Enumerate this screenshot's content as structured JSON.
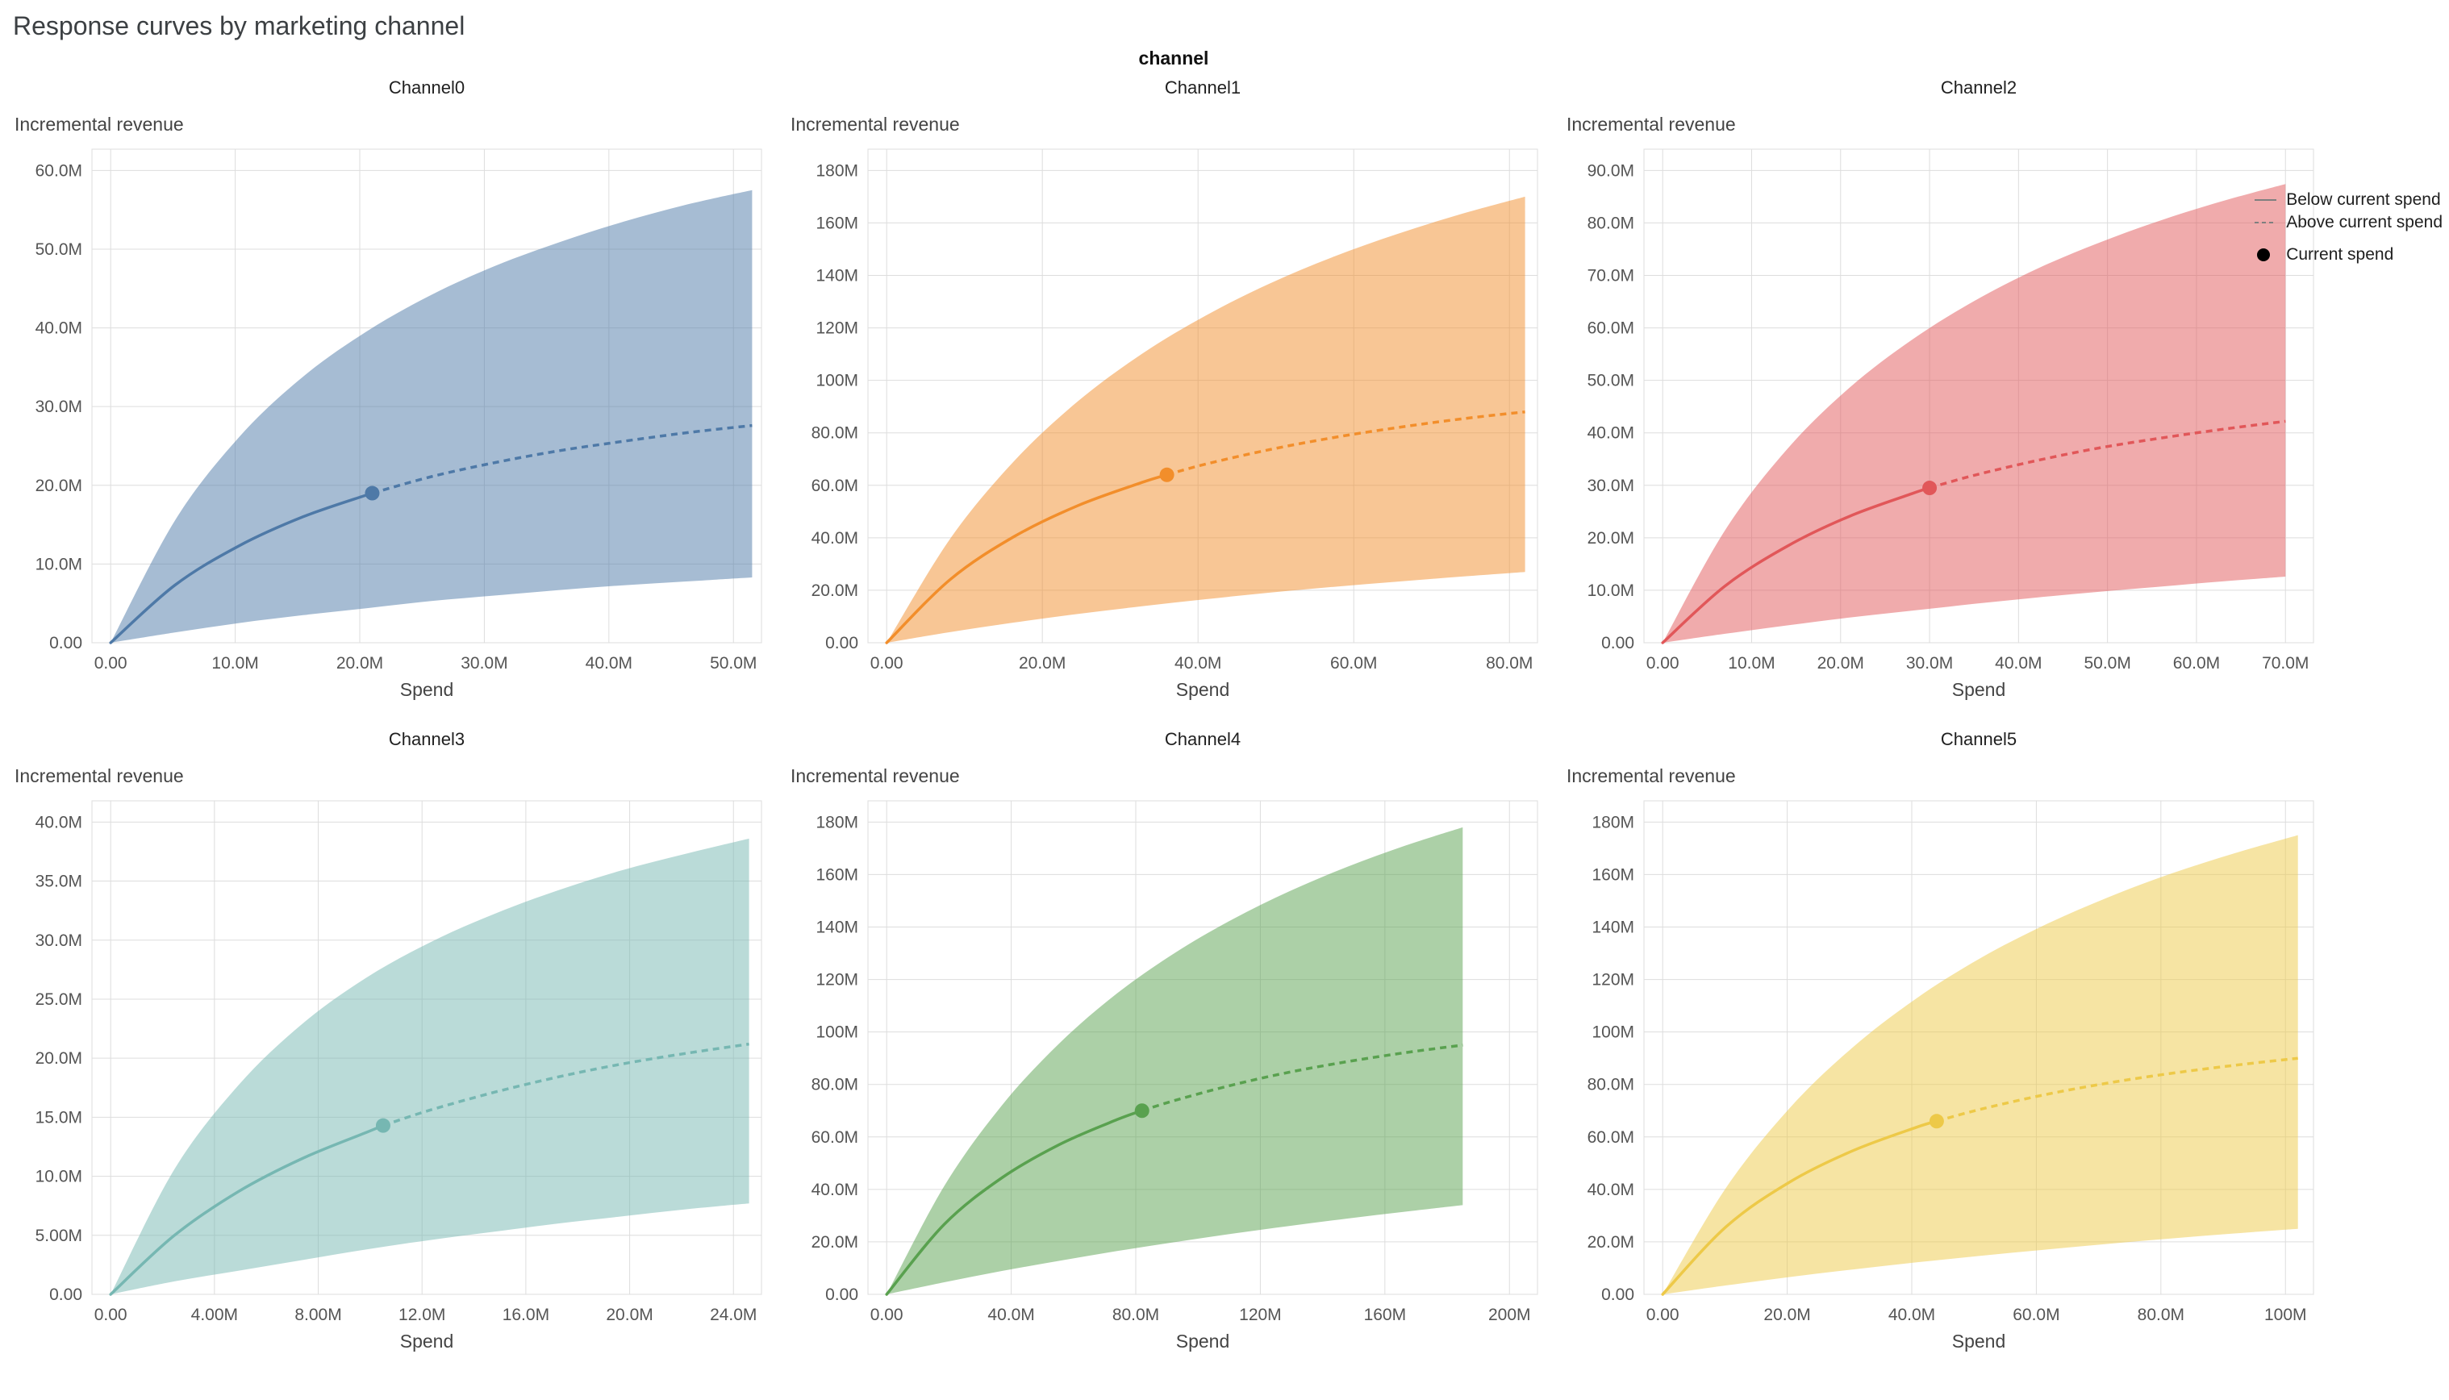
{
  "page": {
    "title": "Response curves by marketing channel",
    "facet_label": "channel"
  },
  "legend": {
    "items": [
      {
        "label": "Below current spend",
        "swatch": "solid-line"
      },
      {
        "label": "Above current spend",
        "swatch": "dashed-line"
      },
      {
        "label": "Current spend",
        "swatch": "dot"
      }
    ],
    "swatch_color": "#7f7f7f",
    "dot_color": "#000000"
  },
  "axes": {
    "y_title": "Incremental revenue",
    "x_title": "Spend",
    "units": "millions"
  },
  "chart_data": [
    {
      "type": "area",
      "title": "Channel0",
      "color": "#4e79a7",
      "x_tick_values": [
        0,
        10,
        20,
        30,
        40,
        50
      ],
      "x_tick_labels": [
        "0.00",
        "10.0M",
        "20.0M",
        "30.0M",
        "40.0M",
        "50.0M"
      ],
      "y_tick_values": [
        0,
        10,
        20,
        30,
        40,
        50,
        60
      ],
      "y_tick_labels": [
        "0.00",
        "10.0M",
        "20.0M",
        "30.0M",
        "40.0M",
        "50.0M",
        "60.0M"
      ],
      "x": [
        0,
        5.15,
        10.3,
        15.45,
        20.6,
        25.75,
        30.9,
        36.05,
        41.2,
        46.35,
        51.5
      ],
      "mean": [
        0,
        7.3,
        12.3,
        16.0,
        18.8,
        21.1,
        22.9,
        24.4,
        25.6,
        26.7,
        27.6
      ],
      "upper": [
        0,
        15.5,
        26.1,
        33.8,
        39.6,
        44.2,
        47.9,
        50.9,
        53.5,
        55.7,
        57.5
      ],
      "lower": [
        0,
        1.3,
        2.5,
        3.5,
        4.4,
        5.3,
        6.0,
        6.7,
        7.3,
        7.8,
        8.3
      ],
      "current_spend": {
        "x": 21,
        "y": 19.0
      }
    },
    {
      "type": "area",
      "title": "Channel1",
      "color": "#f28e2b",
      "x_tick_values": [
        0,
        20,
        40,
        60,
        80
      ],
      "x_tick_labels": [
        "0.00",
        "20.0M",
        "40.0M",
        "60.0M",
        "80.0M"
      ],
      "y_tick_values": [
        0,
        20,
        40,
        60,
        80,
        100,
        120,
        140,
        160,
        180
      ],
      "y_tick_labels": [
        "0.00",
        "20.0M",
        "40.0M",
        "60.0M",
        "80.0M",
        "100M",
        "120M",
        "140M",
        "160M",
        "180M"
      ],
      "x": [
        0,
        8.2,
        16.4,
        24.6,
        32.8,
        41,
        49.2,
        57.4,
        65.6,
        73.8,
        82
      ],
      "mean": [
        0,
        24.2,
        40.5,
        52.3,
        61.1,
        68.1,
        73.6,
        78.2,
        82.0,
        85.3,
        88.0
      ],
      "upper": [
        0,
        39.8,
        69.3,
        92.1,
        110.1,
        124.7,
        136.9,
        147.1,
        155.8,
        163.4,
        170.0
      ],
      "lower": [
        0,
        4.1,
        7.7,
        11.0,
        13.9,
        16.6,
        19.1,
        21.3,
        23.3,
        25.2,
        27.0
      ],
      "current_spend": {
        "x": 36,
        "y": 64.0
      }
    },
    {
      "type": "area",
      "title": "Channel2",
      "color": "#e15759",
      "x_tick_values": [
        0,
        10,
        20,
        30,
        40,
        50,
        60,
        70
      ],
      "x_tick_labels": [
        "0.00",
        "10.0M",
        "20.0M",
        "30.0M",
        "40.0M",
        "50.0M",
        "60.0M",
        "70.0M"
      ],
      "y_tick_values": [
        0,
        10,
        20,
        30,
        40,
        50,
        60,
        70,
        80,
        90
      ],
      "y_tick_labels": [
        "0.00",
        "10.0M",
        "20.0M",
        "30.0M",
        "40.0M",
        "50.0M",
        "60.0M",
        "70.0M",
        "80.0M",
        "90.0M"
      ],
      "x": [
        0,
        7,
        14,
        21,
        28,
        35,
        42,
        49,
        56,
        63,
        70
      ],
      "mean": [
        0,
        10.8,
        18.4,
        24.1,
        28.4,
        31.9,
        34.7,
        37.1,
        39.0,
        40.7,
        42.2
      ],
      "upper": [
        0,
        21.4,
        36.9,
        48.6,
        57.7,
        65.1,
        71.2,
        76.2,
        80.5,
        84.2,
        87.4
      ],
      "lower": [
        0,
        1.7,
        3.3,
        4.8,
        6.1,
        7.4,
        8.6,
        9.7,
        10.7,
        11.7,
        12.6
      ],
      "current_spend": {
        "x": 30,
        "y": 29.5
      }
    },
    {
      "type": "area",
      "title": "Channel3",
      "color": "#76b7b2",
      "x_tick_values": [
        0,
        4,
        8,
        12,
        16,
        20,
        24
      ],
      "x_tick_labels": [
        "0.00",
        "4.00M",
        "8.00M",
        "12.0M",
        "16.0M",
        "20.0M",
        "24.0M"
      ],
      "y_tick_values": [
        0,
        5,
        10,
        15,
        20,
        25,
        30,
        35,
        40
      ],
      "y_tick_labels": [
        "0.00",
        "5.00M",
        "10.0M",
        "15.0M",
        "20.0M",
        "25.0M",
        "30.0M",
        "35.0M",
        "40.0M"
      ],
      "x": [
        0,
        2.46,
        4.92,
        7.38,
        9.84,
        12.3,
        14.76,
        17.22,
        19.68,
        22.14,
        24.6
      ],
      "mean": [
        0,
        5.0,
        8.7,
        11.5,
        13.7,
        15.6,
        17.1,
        18.4,
        19.5,
        20.4,
        21.2
      ],
      "upper": [
        0,
        10.6,
        17.7,
        22.9,
        26.8,
        29.8,
        32.2,
        34.2,
        35.9,
        37.3,
        38.6
      ],
      "lower": [
        0,
        1.1,
        2.0,
        2.9,
        3.8,
        4.6,
        5.3,
        6.0,
        6.6,
        7.2,
        7.7
      ],
      "current_spend": {
        "x": 10.5,
        "y": 14.3
      }
    },
    {
      "type": "area",
      "title": "Channel4",
      "color": "#59a14f",
      "x_tick_values": [
        0,
        40,
        80,
        120,
        160,
        200
      ],
      "x_tick_labels": [
        "0.00",
        "40.0M",
        "80.0M",
        "120M",
        "160M",
        "200M"
      ],
      "y_tick_values": [
        0,
        20,
        40,
        60,
        80,
        100,
        120,
        140,
        160,
        180
      ],
      "y_tick_labels": [
        "0.00",
        "20.0M",
        "40.0M",
        "60.0M",
        "80.0M",
        "100M",
        "120M",
        "140M",
        "160M",
        "180M"
      ],
      "x": [
        0,
        18.5,
        37,
        55.5,
        74,
        92.5,
        111,
        129.5,
        148,
        166.5,
        185
      ],
      "mean": [
        0,
        26.7,
        44.4,
        57.1,
        66.6,
        73.9,
        79.8,
        84.7,
        88.7,
        92.1,
        95.0
      ],
      "upper": [
        0,
        41.3,
        72.0,
        95.7,
        114.7,
        130.1,
        142.9,
        153.7,
        163.0,
        171.0,
        178.0
      ],
      "lower": [
        0,
        4.6,
        8.9,
        12.8,
        16.5,
        19.9,
        23.1,
        26.1,
        28.9,
        31.5,
        34.0
      ],
      "current_spend": {
        "x": 82,
        "y": 70.0
      }
    },
    {
      "type": "area",
      "title": "Channel5",
      "color": "#edc948",
      "x_tick_values": [
        0,
        20,
        40,
        60,
        80,
        100
      ],
      "x_tick_labels": [
        "0.00",
        "20.0M",
        "40.0M",
        "60.0M",
        "80.0M",
        "100M"
      ],
      "y_tick_values": [
        0,
        20,
        40,
        60,
        80,
        100,
        120,
        140,
        160,
        180
      ],
      "y_tick_labels": [
        "0.00",
        "20.0M",
        "40.0M",
        "60.0M",
        "80.0M",
        "100M",
        "120M",
        "140M",
        "160M",
        "180M"
      ],
      "x": [
        0,
        10.2,
        20.4,
        30.6,
        40.8,
        51,
        61.2,
        71.4,
        81.6,
        91.8,
        102
      ],
      "mean": [
        0,
        25.8,
        42.8,
        54.8,
        63.7,
        70.5,
        76.0,
        80.5,
        84.2,
        87.3,
        90.0
      ],
      "upper": [
        0,
        40.7,
        71.0,
        94.3,
        112.9,
        128.1,
        140.6,
        151.2,
        160.3,
        168.1,
        175.0
      ],
      "lower": [
        0,
        3.4,
        6.6,
        9.5,
        12.2,
        14.7,
        17.0,
        19.2,
        21.3,
        23.2,
        25.0
      ],
      "current_spend": {
        "x": 44,
        "y": 66.0
      }
    }
  ],
  "style": {
    "grid_color": "#dddddd",
    "tick_label_color": "#555555",
    "axis_title_color": "#444444",
    "band_opacity": 0.5
  }
}
